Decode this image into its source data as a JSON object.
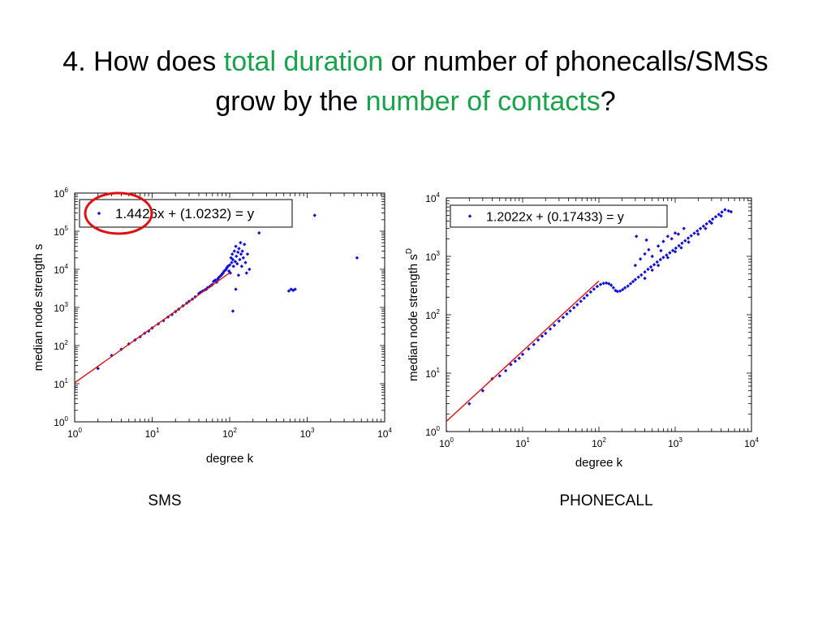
{
  "slide": {
    "title_line1": {
      "part1": "4. How does ",
      "part2": "total duration",
      "part3": " or number of phonecalls/SMSs"
    },
    "title_line2": {
      "part1": "grow by the ",
      "part2": "number of contacts",
      "part3": "?"
    },
    "accent_color": "#17a34a",
    "captions": [
      "SMS",
      "PHONECALL"
    ]
  },
  "chart_data": [
    {
      "type": "scatter",
      "panel": "SMS",
      "xscale": "log",
      "yscale": "log",
      "xlim": [
        1,
        10000
      ],
      "ylim": [
        1,
        1000000
      ],
      "xlabel": "degree k",
      "ylabel": "median node strength s",
      "xticks": [
        1,
        10,
        100,
        1000,
        10000
      ],
      "yticks": [
        1,
        10,
        100,
        1000,
        10000,
        100000,
        1000000
      ],
      "legend": "1.4426x + (1.0232) = y",
      "legend_position": "top-left",
      "annotation": "red circle around legend marker",
      "fit": {
        "slope": 1.4426,
        "intercept": 1.0232,
        "x_range": [
          1,
          100
        ]
      },
      "points": [
        [
          1,
          8
        ],
        [
          2,
          25
        ],
        [
          3,
          55
        ],
        [
          4,
          80
        ],
        [
          5,
          110
        ],
        [
          6,
          140
        ],
        [
          7,
          170
        ],
        [
          8,
          210
        ],
        [
          9,
          240
        ],
        [
          10,
          290
        ],
        [
          12,
          370
        ],
        [
          14,
          450
        ],
        [
          16,
          560
        ],
        [
          18,
          650
        ],
        [
          20,
          780
        ],
        [
          22,
          900
        ],
        [
          25,
          1100
        ],
        [
          28,
          1300
        ],
        [
          30,
          1450
        ],
        [
          33,
          1650
        ],
        [
          36,
          1900
        ],
        [
          40,
          2300
        ],
        [
          42,
          2500
        ],
        [
          45,
          2700
        ],
        [
          48,
          2900
        ],
        [
          50,
          3000
        ],
        [
          52,
          3300
        ],
        [
          55,
          3500
        ],
        [
          58,
          3800
        ],
        [
          60,
          4000
        ],
        [
          62,
          4800
        ],
        [
          65,
          5200
        ],
        [
          68,
          4600
        ],
        [
          70,
          5500
        ],
        [
          72,
          6000
        ],
        [
          75,
          6500
        ],
        [
          78,
          7000
        ],
        [
          80,
          7500
        ],
        [
          82,
          8000
        ],
        [
          85,
          9000
        ],
        [
          88,
          9500
        ],
        [
          90,
          10000
        ],
        [
          92,
          11000
        ],
        [
          95,
          12000
        ],
        [
          98,
          9000
        ],
        [
          100,
          13000
        ],
        [
          102,
          8000
        ],
        [
          104,
          20000
        ],
        [
          106,
          15000
        ],
        [
          108,
          25000
        ],
        [
          110,
          18000
        ],
        [
          112,
          12000
        ],
        [
          115,
          30000
        ],
        [
          118,
          16000
        ],
        [
          120,
          40000
        ],
        [
          122,
          22000
        ],
        [
          125,
          14000
        ],
        [
          128,
          28000
        ],
        [
          130,
          7000
        ],
        [
          132,
          35000
        ],
        [
          135,
          18000
        ],
        [
          138,
          50000
        ],
        [
          140,
          25000
        ],
        [
          143,
          12000
        ],
        [
          146,
          30000
        ],
        [
          150,
          20000
        ],
        [
          155,
          45000
        ],
        [
          160,
          15000
        ],
        [
          165,
          8000
        ],
        [
          170,
          25000
        ],
        [
          180,
          10000
        ],
        [
          110,
          800
        ],
        [
          120,
          3000
        ],
        [
          240,
          90000
        ],
        [
          580,
          2700
        ],
        [
          620,
          3000
        ],
        [
          660,
          2800
        ],
        [
          700,
          3000
        ],
        [
          1250,
          260000
        ],
        [
          4400,
          20000
        ]
      ]
    },
    {
      "type": "scatter",
      "panel": "PHONECALL",
      "xscale": "log",
      "yscale": "log",
      "xlim": [
        1,
        10000
      ],
      "ylim": [
        1,
        10000
      ],
      "xlabel": "degree k",
      "ylabel": "median node strength s",
      "ylabel_superscript": "D",
      "xticks": [
        1,
        10,
        100,
        1000,
        10000
      ],
      "yticks": [
        1,
        10,
        100,
        1000,
        10000
      ],
      "legend": "1.2022x + (0.17433) = y",
      "legend_position": "top-left",
      "fit": {
        "slope": 1.2022,
        "intercept": 0.17433,
        "x_range": [
          1,
          100
        ]
      },
      "points": [
        [
          1,
          1.0
        ],
        [
          2,
          3
        ],
        [
          3,
          5
        ],
        [
          4,
          8
        ],
        [
          5,
          9
        ],
        [
          6,
          11
        ],
        [
          7,
          14
        ],
        [
          8,
          16
        ],
        [
          9,
          18
        ],
        [
          10,
          21
        ],
        [
          12,
          26
        ],
        [
          14,
          31
        ],
        [
          16,
          37
        ],
        [
          18,
          43
        ],
        [
          20,
          48
        ],
        [
          23,
          57
        ],
        [
          26,
          66
        ],
        [
          30,
          78
        ],
        [
          34,
          90
        ],
        [
          38,
          103
        ],
        [
          42,
          116
        ],
        [
          47,
          132
        ],
        [
          52,
          149
        ],
        [
          58,
          170
        ],
        [
          64,
          192
        ],
        [
          70,
          215
        ],
        [
          78,
          245
        ],
        [
          86,
          275
        ],
        [
          95,
          305
        ],
        [
          105,
          330
        ],
        [
          115,
          345
        ],
        [
          125,
          350
        ],
        [
          135,
          340
        ],
        [
          145,
          320
        ],
        [
          155,
          290
        ],
        [
          165,
          260
        ],
        [
          175,
          250
        ],
        [
          190,
          255
        ],
        [
          205,
          270
        ],
        [
          220,
          290
        ],
        [
          240,
          310
        ],
        [
          260,
          340
        ],
        [
          280,
          370
        ],
        [
          300,
          400
        ],
        [
          330,
          440
        ],
        [
          360,
          480
        ],
        [
          400,
          540
        ],
        [
          440,
          600
        ],
        [
          480,
          660
        ],
        [
          530,
          720
        ],
        [
          580,
          800
        ],
        [
          640,
          880
        ],
        [
          700,
          960
        ],
        [
          770,
          1050
        ],
        [
          850,
          1150
        ],
        [
          930,
          1260
        ],
        [
          1020,
          1380
        ],
        [
          1120,
          1520
        ],
        [
          1230,
          1680
        ],
        [
          1350,
          1850
        ],
        [
          1480,
          2050
        ],
        [
          1620,
          2250
        ],
        [
          1780,
          2480
        ],
        [
          1950,
          2720
        ],
        [
          2140,
          2990
        ],
        [
          2350,
          3280
        ],
        [
          2580,
          3600
        ],
        [
          2830,
          3960
        ],
        [
          3100,
          4340
        ],
        [
          3400,
          4760
        ],
        [
          3730,
          5220
        ],
        [
          4100,
          5720
        ],
        [
          4500,
          6280
        ],
        [
          5000,
          6000
        ],
        [
          5400,
          5800
        ],
        [
          300,
          700
        ],
        [
          350,
          900
        ],
        [
          400,
          1100
        ],
        [
          450,
          1300
        ],
        [
          500,
          1000
        ],
        [
          600,
          1500
        ],
        [
          650,
          1250
        ],
        [
          700,
          1800
        ],
        [
          800,
          2200
        ],
        [
          900,
          2000
        ],
        [
          1000,
          2500
        ],
        [
          1100,
          2400
        ],
        [
          1300,
          3000
        ],
        [
          400,
          420
        ],
        [
          500,
          580
        ],
        [
          600,
          700
        ],
        [
          800,
          950
        ],
        [
          1000,
          1200
        ],
        [
          1200,
          1400
        ],
        [
          1500,
          1750
        ],
        [
          2000,
          2400
        ],
        [
          2500,
          3000
        ],
        [
          3000,
          3700
        ],
        [
          4000,
          4900
        ],
        [
          310,
          2200
        ],
        [
          420,
          1900
        ]
      ]
    }
  ]
}
